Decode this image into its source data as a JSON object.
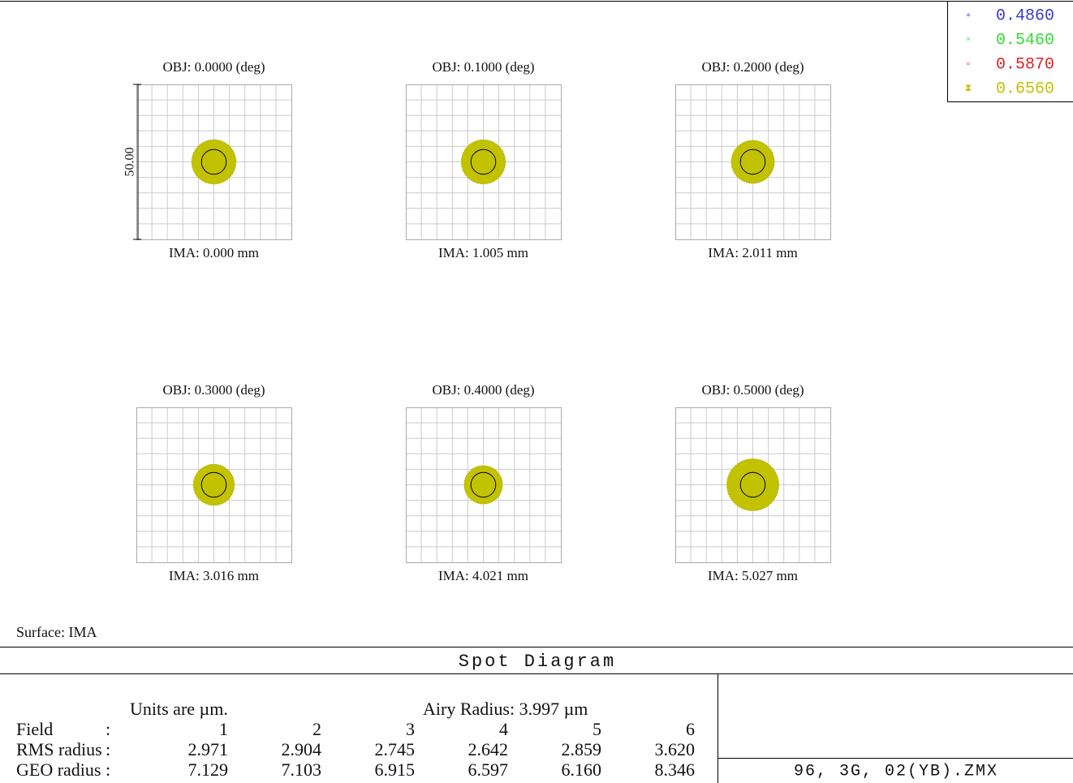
{
  "legend": [
    {
      "marker": "+",
      "label": "0.4860",
      "color": "#3a3ad0"
    },
    {
      "marker": "×",
      "label": "0.5460",
      "color": "#33dd33"
    },
    {
      "marker": "▫",
      "label": "0.5870",
      "color": "#dd2222"
    },
    {
      "marker": "⧗",
      "label": "0.6560",
      "color": "#c2c200"
    }
  ],
  "fields": [
    {
      "obj": "OBJ: 0.0000 (deg)",
      "ima": "IMA: 0.000 mm"
    },
    {
      "obj": "OBJ: 0.1000 (deg)",
      "ima": "IMA: 1.005 mm"
    },
    {
      "obj": "OBJ: 0.2000 (deg)",
      "ima": "IMA: 2.011 mm"
    },
    {
      "obj": "OBJ: 0.3000 (deg)",
      "ima": "IMA: 3.016 mm"
    },
    {
      "obj": "OBJ: 0.4000 (deg)",
      "ima": "IMA: 4.021 mm"
    },
    {
      "obj": "OBJ: 0.5000 (deg)",
      "ima": "IMA: 5.027 mm"
    }
  ],
  "scale_bar": "50.00",
  "surface": "Surface: IMA",
  "title": "Spot Diagram",
  "table": {
    "units": "Units are µm.",
    "airy_label": "Airy Radius:",
    "airy_value": "3.997",
    "airy_unit": "µm",
    "rows": [
      [
        "Field",
        ":",
        "1",
        "2",
        "3",
        "4",
        "5",
        "6"
      ],
      [
        "RMS radius",
        ":",
        "2.971",
        "2.904",
        "2.745",
        "2.642",
        "2.859",
        "3.620"
      ],
      [
        "GEO radius",
        ":",
        "7.129",
        "7.103",
        "6.915",
        "6.597",
        "6.160",
        "8.346"
      ]
    ]
  },
  "file": "96, 3G, 02(YB).ZMX"
}
